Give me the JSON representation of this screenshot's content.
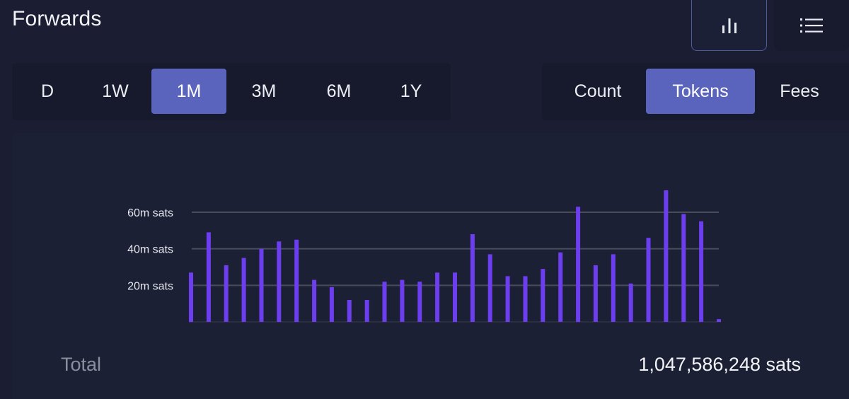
{
  "header": {
    "title": "Forwards",
    "chart_view_icon": "bar-chart-icon",
    "list_view_icon": "list-icon"
  },
  "period_tabs": [
    "D",
    "1W",
    "1M",
    "3M",
    "6M",
    "1Y"
  ],
  "period_selected": "1M",
  "metric_tabs": [
    "Count",
    "Tokens",
    "Fees"
  ],
  "metric_selected": "Tokens",
  "colors": {
    "accent": "#5a64bd",
    "bar": "#6d3ef0",
    "background": "#1b1d33",
    "panel": "#1c2034"
  },
  "chart_data": {
    "type": "bar",
    "title": "",
    "xlabel": "",
    "ylabel": "",
    "ylim": [
      0,
      70
    ],
    "y_ticks": [
      {
        "value": 20,
        "label": "20m sats"
      },
      {
        "value": 40,
        "label": "40m sats"
      },
      {
        "value": 60,
        "label": "60m sats"
      }
    ],
    "grid": true,
    "series": [
      {
        "values": [
          27,
          49,
          31,
          35,
          40,
          44,
          45,
          23,
          19,
          12,
          12,
          22,
          23,
          22,
          27,
          27,
          48,
          37,
          25,
          25,
          29,
          38,
          63,
          31,
          37,
          21,
          46,
          72,
          59,
          55,
          1.5
        ]
      }
    ]
  },
  "total": {
    "label": "Total",
    "value": "1,047,586,248 sats"
  }
}
